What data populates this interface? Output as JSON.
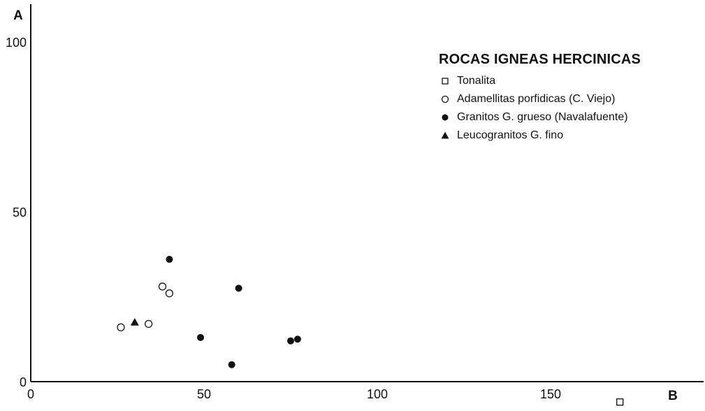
{
  "chart_data": {
    "type": "scatter",
    "title": "ROCAS IGNEAS HERCINICAS",
    "xlabel": "B",
    "ylabel": "A",
    "xlim": [
      -8,
      196
    ],
    "ylim": [
      -1,
      111
    ],
    "x_ticks": [
      "0",
      "50",
      "100",
      "150"
    ],
    "y_ticks": [
      "0",
      "50",
      "100"
    ],
    "x_tick_values": [
      0,
      50,
      100,
      150
    ],
    "y_tick_values": [
      0,
      50,
      100
    ],
    "legend_position": "top-right",
    "series": [
      {
        "name": "Tonalita",
        "marker": "square-open",
        "points": [
          [
            170,
            -6
          ]
        ]
      },
      {
        "name": "Adamellitas porfidicas (C. Viejo)",
        "marker": "circle-open",
        "points": [
          [
            26,
            16
          ],
          [
            34,
            17
          ],
          [
            38,
            28
          ],
          [
            40,
            26
          ]
        ]
      },
      {
        "name": "Granitos G. grueso (Navalafuente)",
        "marker": "circle-filled",
        "points": [
          [
            40,
            36
          ],
          [
            49,
            13
          ],
          [
            58,
            5
          ],
          [
            60,
            27.5
          ],
          [
            75,
            12
          ],
          [
            77,
            12.5
          ]
        ]
      },
      {
        "name": "Leucogranitos G. fino",
        "marker": "triangle-filled",
        "points": [
          [
            30,
            17.5
          ]
        ]
      }
    ]
  },
  "legend": {
    "title": "ROCAS IGNEAS HERCINICAS",
    "items": [
      {
        "label": "Tonalita",
        "marker": "square-open"
      },
      {
        "label": "Adamellitas porfidicas (C. Viejo)",
        "marker": "circle-open"
      },
      {
        "label": "Granitos G. grueso (Navalafuente)",
        "marker": "circle-filled"
      },
      {
        "label": "Leucogranitos G. fino",
        "marker": "triangle-filled"
      }
    ]
  }
}
